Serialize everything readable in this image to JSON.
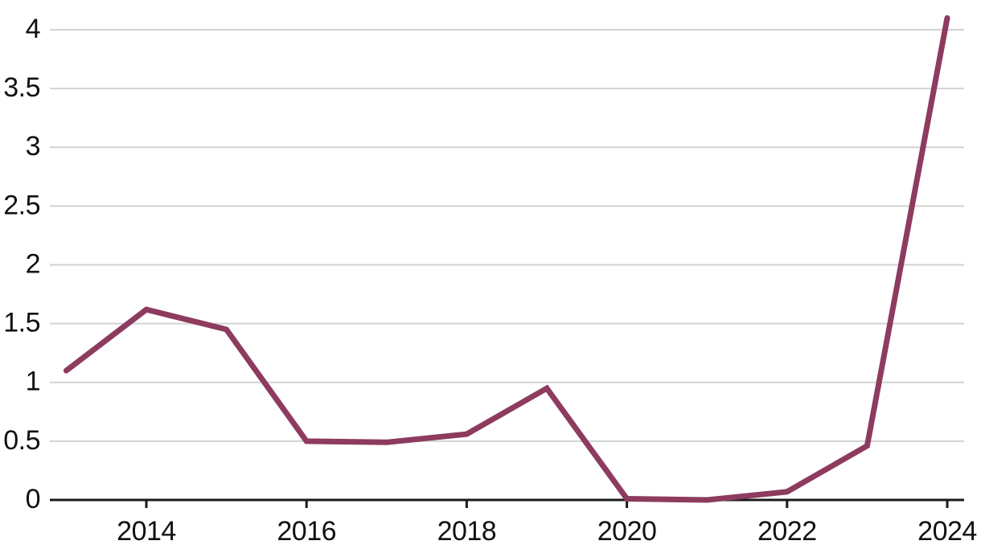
{
  "chart_data": {
    "type": "line",
    "title": "",
    "xlabel": "",
    "ylabel": "",
    "x": [
      2013,
      2014,
      2015,
      2016,
      2017,
      2018,
      2019,
      2020,
      2021,
      2022,
      2023,
      2024
    ],
    "values": [
      1.1,
      1.62,
      1.45,
      0.5,
      0.49,
      0.56,
      0.95,
      0.01,
      0.0,
      0.07,
      0.46,
      4.1
    ],
    "series": [
      {
        "name": "value",
        "values": [
          1.1,
          1.62,
          1.45,
          0.5,
          0.49,
          0.56,
          0.95,
          0.01,
          0.0,
          0.07,
          0.46,
          4.1
        ]
      }
    ],
    "xlim": [
      2013,
      2024
    ],
    "ylim": [
      0,
      4.1
    ],
    "x_ticks": [
      {
        "value": 2014,
        "label": "2014"
      },
      {
        "value": 2016,
        "label": "2016"
      },
      {
        "value": 2018,
        "label": "2018"
      },
      {
        "value": 2020,
        "label": "2020"
      },
      {
        "value": 2022,
        "label": "2022"
      },
      {
        "value": 2024,
        "label": "2024"
      }
    ],
    "y_ticks": [
      {
        "value": 0,
        "label": "0"
      },
      {
        "value": 0.5,
        "label": "0.5"
      },
      {
        "value": 1,
        "label": "1"
      },
      {
        "value": 1.5,
        "label": "1.5"
      },
      {
        "value": 2,
        "label": "2"
      },
      {
        "value": 2.5,
        "label": "2.5"
      },
      {
        "value": 3,
        "label": "3"
      },
      {
        "value": 3.5,
        "label": "3.5"
      },
      {
        "value": 4,
        "label": "4"
      }
    ],
    "grid": true,
    "legend": false,
    "colors": {
      "line": "#8d3b5e",
      "gridline": "#d2d2d2",
      "axis": "#1a1a1a",
      "tick_label": "#111111",
      "background": "#ffffff"
    }
  }
}
